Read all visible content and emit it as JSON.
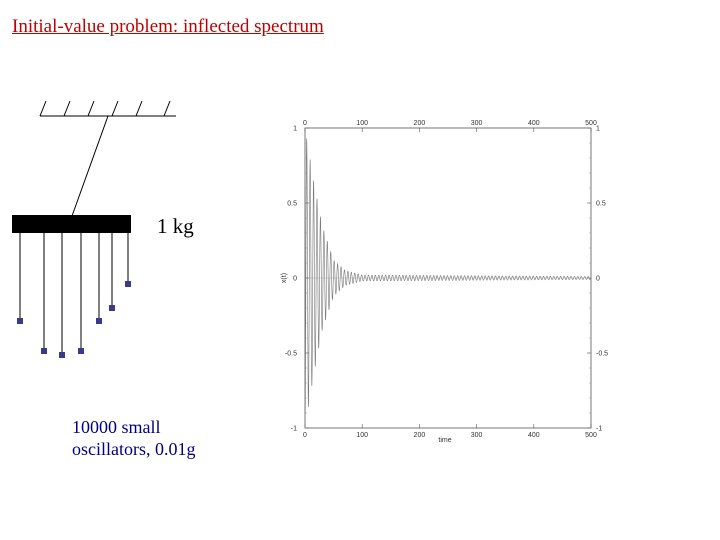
{
  "slide": {
    "title": "Initial-value problem: inflected spectrum",
    "mass_label": "1 kg",
    "oscillator_label_line1": "10000 small",
    "oscillator_label_line2": "oscillators,  0.01g"
  },
  "colors": {
    "title": "#c00000",
    "oscillator_text": "#000080",
    "bob": "#3a3a8c",
    "trace": "#777777"
  },
  "chart_data": {
    "type": "line",
    "title": "",
    "xlabel": "time",
    "ylabel": "x(t)",
    "xlim": [
      0,
      500
    ],
    "ylim": [
      -1,
      1
    ],
    "x_ticks": [
      "0",
      "100",
      "200",
      "300",
      "400",
      "500"
    ],
    "y_ticks_left": [
      "1",
      "0.5",
      "0",
      "-0.5",
      "-1"
    ],
    "y_ticks_right": [
      "1",
      "0.5",
      "0",
      "-0.5",
      "-1"
    ],
    "series": [
      {
        "amplitude_envelope": [
          {
            "t": 0,
            "a": 1.0
          },
          {
            "t": 15,
            "a": 0.65
          },
          {
            "t": 30,
            "a": 0.35
          },
          {
            "t": 50,
            "a": 0.12
          },
          {
            "t": 70,
            "a": 0.05
          },
          {
            "t": 100,
            "a": 0.02
          },
          {
            "t": 500,
            "a": 0.01
          }
        ],
        "period": 6
      }
    ]
  }
}
